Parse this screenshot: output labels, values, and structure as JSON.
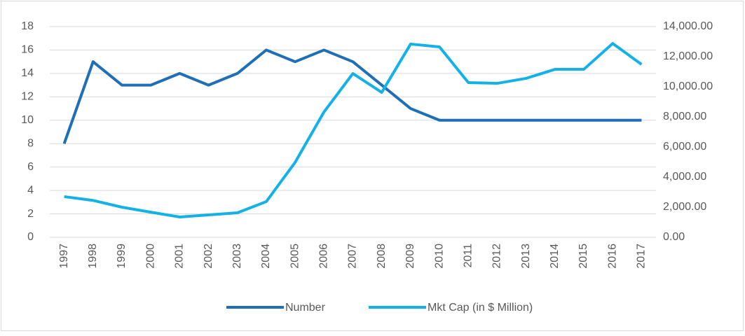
{
  "chart_data": {
    "type": "line",
    "categories": [
      "1997",
      "1998",
      "1999",
      "2000",
      "2001",
      "2002",
      "2003",
      "2004",
      "2005",
      "2006",
      "2007",
      "2008",
      "2009",
      "2010",
      "2011",
      "2012",
      "2013",
      "2014",
      "2015",
      "2016",
      "2017"
    ],
    "series": [
      {
        "name": "Number",
        "color": "#1f6fb7",
        "values": [
          8,
          15,
          13,
          13,
          14,
          13,
          14,
          16,
          15,
          16,
          15,
          13,
          11,
          10,
          10,
          10,
          10,
          10,
          10,
          10,
          10
        ]
      },
      {
        "name": "Mkt Cap (in $ Million)",
        "color": "#14b1e7",
        "axis": "y2",
        "values": [
          2700,
          2450,
          2000,
          1670,
          1350,
          1490,
          1630,
          2370,
          4980,
          8330,
          10880,
          9630,
          12840,
          12650,
          10280,
          10230,
          10560,
          11160,
          11160,
          12880,
          11490
        ]
      }
    ],
    "ylim": [
      0,
      18
    ],
    "yticks": [
      0,
      2,
      4,
      6,
      8,
      10,
      12,
      14,
      16,
      18
    ],
    "y2lim": [
      0,
      14000
    ],
    "y2ticks": [
      {
        "value": 0,
        "label": "0.00"
      },
      {
        "value": 2000,
        "label": "2,000.00"
      },
      {
        "value": 4000,
        "label": "4,000.00"
      },
      {
        "value": 6000,
        "label": "6,000.00"
      },
      {
        "value": 8000,
        "label": "8,000.00"
      },
      {
        "value": 10000,
        "label": "10,000.00"
      },
      {
        "value": 12000,
        "label": "12,000.00"
      },
      {
        "value": 14000,
        "label": "14,000.00"
      }
    ],
    "grid": true,
    "legend": "bottom"
  }
}
